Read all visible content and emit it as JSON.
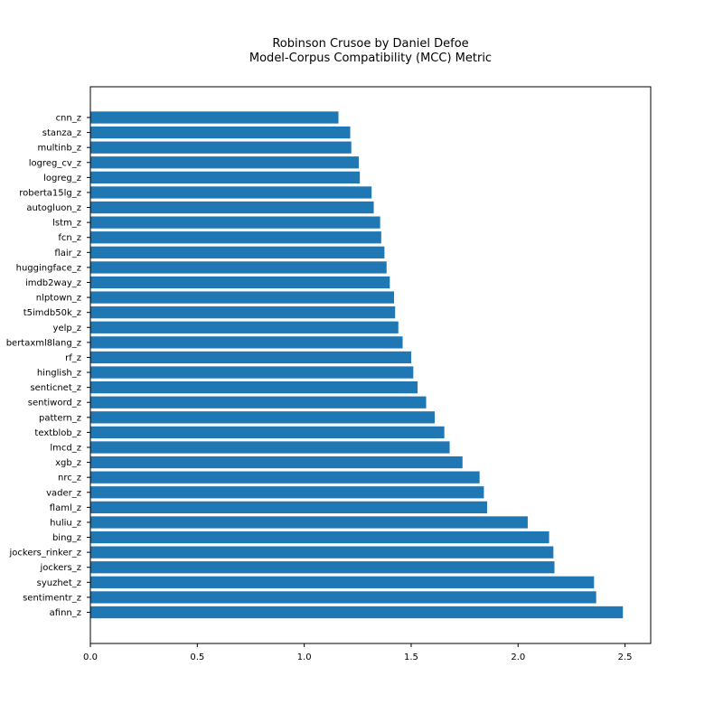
{
  "chart_data": {
    "type": "bar",
    "orientation": "horizontal",
    "title_line1": "Robinson Crusoe by Daniel Defoe",
    "title_line2": "Model-Corpus Compatibility (MCC) Metric",
    "xlabel": "",
    "ylabel": "",
    "xlim": [
      0,
      2.62
    ],
    "xticks": [
      0.0,
      0.5,
      1.0,
      1.5,
      2.0,
      2.5
    ],
    "xtick_labels": [
      "0.0",
      "0.5",
      "1.0",
      "1.5",
      "2.0",
      "2.5"
    ],
    "grid": false,
    "bar_color": "#1f77b4",
    "categories": [
      "cnn_z",
      "stanza_z",
      "multinb_z",
      "logreg_cv_z",
      "logreg_z",
      "roberta15lg_z",
      "autogluon_z",
      "lstm_z",
      "fcn_z",
      "flair_z",
      "huggingface_z",
      "imdb2way_z",
      "nlptown_z",
      "t5imdb50k_z",
      "yelp_z",
      "bertaxml8lang_z",
      "rf_z",
      "hinglish_z",
      "senticnet_z",
      "sentiword_z",
      "pattern_z",
      "textblob_z",
      "lmcd_z",
      "xgb_z",
      "nrc_z",
      "vader_z",
      "flaml_z",
      "huliu_z",
      "bing_z",
      "jockers_rinker_z",
      "jockers_z",
      "syuzhet_z",
      "sentimentr_z",
      "afinn_z"
    ],
    "values": [
      1.16,
      1.215,
      1.22,
      1.255,
      1.26,
      1.315,
      1.325,
      1.355,
      1.36,
      1.375,
      1.385,
      1.4,
      1.42,
      1.425,
      1.44,
      1.46,
      1.5,
      1.51,
      1.53,
      1.57,
      1.61,
      1.655,
      1.68,
      1.74,
      1.82,
      1.84,
      1.855,
      2.045,
      2.145,
      2.165,
      2.17,
      2.355,
      2.365,
      2.49
    ]
  }
}
